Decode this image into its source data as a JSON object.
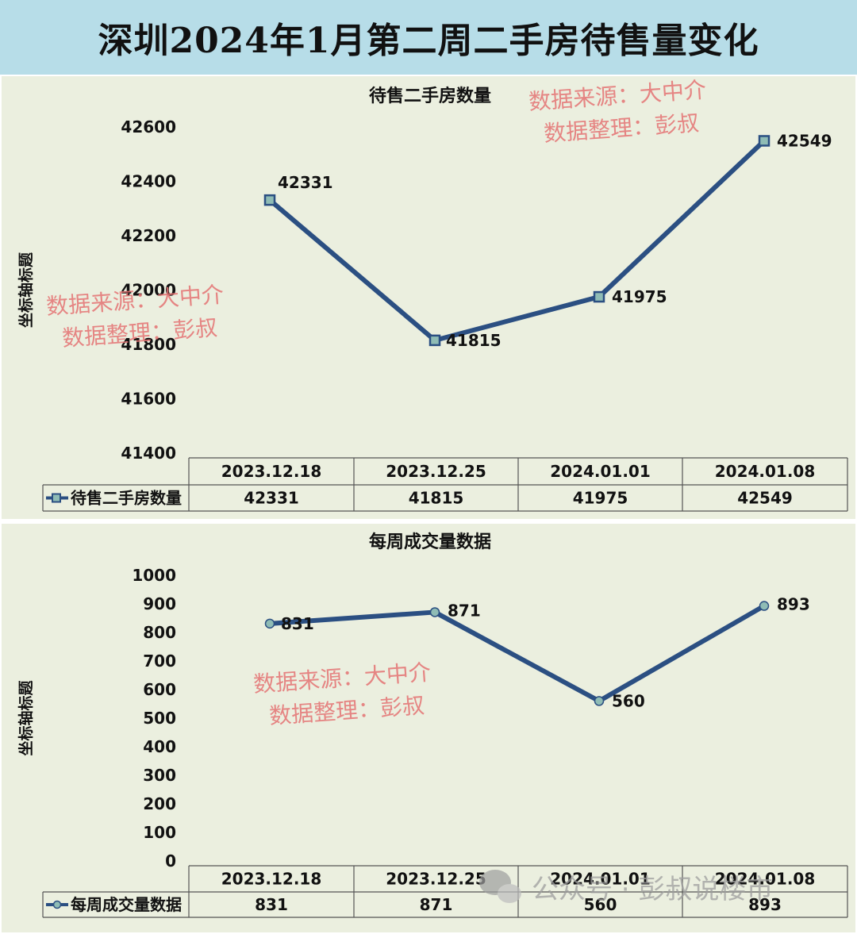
{
  "page_title": "深圳2024年1月第二周二手房待售量变化",
  "watermark": {
    "line1": "数据来源：大中介",
    "line2": "数据整理：彭叔"
  },
  "account_watermark": "公众号 · 彭叔说楼市",
  "colors": {
    "line": "#2b4f82",
    "marker_fill": "#8fbcb5",
    "panel_bg": "#ebefdf",
    "banner_bg": "#b7dde8",
    "watermark": "#e57373"
  },
  "chart_data": [
    {
      "type": "line",
      "title": "待售二手房数量",
      "ylabel": "坐标轴标题",
      "categories": [
        "2023.12.18",
        "2023.12.25",
        "2024.01.01",
        "2024.01.08"
      ],
      "series": [
        {
          "name": "待售二手房数量",
          "values": [
            42331,
            41815,
            41975,
            42549
          ],
          "marker": "square"
        }
      ],
      "ylim": [
        41400,
        42600
      ],
      "yticks": [
        "41400",
        "41600",
        "41800",
        "42000",
        "42200",
        "42400",
        "42600"
      ],
      "grid": false,
      "data_table": true
    },
    {
      "type": "line",
      "title": "每周成交量数据",
      "ylabel": "坐标轴标题",
      "categories": [
        "2023.12.18",
        "2023.12.25",
        "2024.01.01",
        "2024.01.08"
      ],
      "series": [
        {
          "name": "每周成交量数据",
          "values": [
            831,
            871,
            560,
            893
          ],
          "marker": "circle"
        }
      ],
      "ylim": [
        0,
        1000
      ],
      "yticks": [
        "0",
        "100",
        "200",
        "300",
        "400",
        "500",
        "600",
        "700",
        "800",
        "900",
        "1000"
      ],
      "grid": false,
      "data_table": true
    }
  ]
}
